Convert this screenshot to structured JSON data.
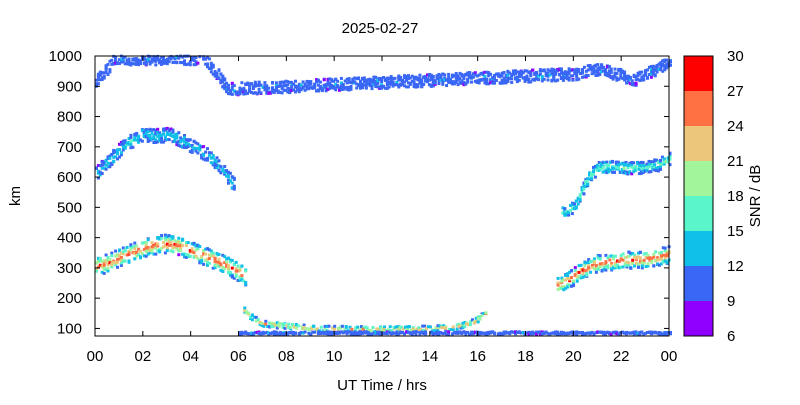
{
  "chart_data": {
    "type": "heatmap",
    "title": "2025-02-27",
    "xlabel": "UT Time / hrs",
    "ylabel": "km",
    "xlim": [
      0,
      24
    ],
    "ylim": [
      75,
      1000
    ],
    "x_tick_labels": [
      "00",
      "02",
      "04",
      "06",
      "08",
      "10",
      "12",
      "14",
      "16",
      "18",
      "20",
      "22",
      "00"
    ],
    "y_ticks": [
      100,
      200,
      300,
      400,
      500,
      600,
      700,
      800,
      900,
      1000
    ],
    "colorbar": {
      "label": "SNR / dB",
      "ticks": [
        6,
        9,
        12,
        15,
        18,
        21,
        24,
        27,
        30
      ],
      "range": [
        6,
        30
      ],
      "colors": [
        "#8f00ff",
        "#3a67f5",
        "#11c0e8",
        "#5af5c8",
        "#a3f59c",
        "#ecc77b",
        "#ff7043",
        "#ff0000"
      ]
    },
    "grid": false,
    "layers": [
      {
        "name": "F2 layer",
        "points": [
          [
            0,
            305
          ],
          [
            0.5,
            315
          ],
          [
            1,
            335
          ],
          [
            1.5,
            350
          ],
          [
            2,
            365
          ],
          [
            2.5,
            375
          ],
          [
            3,
            380
          ],
          [
            3.5,
            372
          ],
          [
            4,
            355
          ],
          [
            4.5,
            340
          ],
          [
            5,
            325
          ],
          [
            5.5,
            305
          ],
          [
            6,
            285
          ],
          [
            6.3,
            270
          ]
        ],
        "snr_core": 27,
        "band_km": 60
      },
      {
        "name": "E layer",
        "points": [
          [
            6.2,
            160
          ],
          [
            6.6,
            130
          ],
          [
            7,
            115
          ],
          [
            8,
            108
          ],
          [
            9,
            100
          ],
          [
            10,
            98
          ],
          [
            12,
            97
          ],
          [
            14,
            98
          ],
          [
            15,
            105
          ],
          [
            15.8,
            120
          ],
          [
            16.3,
            150
          ]
        ],
        "snr_core": 24,
        "band_km": 20
      },
      {
        "name": "Multi-hop echo",
        "points": [
          [
            0,
            610
          ],
          [
            0.5,
            650
          ],
          [
            1,
            690
          ],
          [
            1.5,
            720
          ],
          [
            2,
            740
          ],
          [
            2.5,
            735
          ],
          [
            3,
            740
          ],
          [
            3.5,
            725
          ],
          [
            4,
            700
          ],
          [
            4.5,
            680
          ],
          [
            5,
            650
          ],
          [
            5.5,
            600
          ],
          [
            5.8,
            570
          ]
        ],
        "snr_core": 14,
        "band_km": 45
      },
      {
        "name": "Evening F layer",
        "points": [
          [
            19.3,
            240
          ],
          [
            19.8,
            260
          ],
          [
            20.2,
            285
          ],
          [
            20.7,
            305
          ],
          [
            21,
            315
          ],
          [
            21.5,
            320
          ],
          [
            22,
            325
          ],
          [
            22.5,
            325
          ],
          [
            23,
            328
          ],
          [
            23.5,
            335
          ],
          [
            24,
            345
          ]
        ],
        "snr_core": 27,
        "band_km": 55
      },
      {
        "name": "Evening echo",
        "points": [
          [
            19.5,
            480
          ],
          [
            20,
            500
          ],
          [
            20.3,
            550
          ],
          [
            20.6,
            600
          ],
          [
            21,
            630
          ],
          [
            21.5,
            635
          ],
          [
            22,
            630
          ],
          [
            22.5,
            630
          ],
          [
            23,
            630
          ],
          [
            23.5,
            640
          ],
          [
            24,
            660
          ]
        ],
        "snr_core": 17,
        "band_km": 40
      },
      {
        "name": "Top returns",
        "points": [
          [
            0,
            920
          ],
          [
            0.5,
            960
          ],
          [
            0.8,
            990
          ],
          [
            4.5,
            990
          ],
          [
            5,
            950
          ],
          [
            5.5,
            890
          ],
          [
            20,
            940
          ],
          [
            21,
            955
          ],
          [
            22,
            935
          ],
          [
            22.5,
            920
          ],
          [
            23,
            940
          ],
          [
            23.5,
            960
          ],
          [
            24,
            985
          ]
        ],
        "snr_core": 11,
        "band_km": 40
      },
      {
        "name": "Ground returns",
        "points": [
          [
            6,
            85
          ],
          [
            8,
            85
          ],
          [
            10,
            85
          ],
          [
            12,
            85
          ],
          [
            14,
            85
          ],
          [
            16,
            85
          ],
          [
            18,
            85
          ],
          [
            20,
            85
          ],
          [
            22,
            85
          ],
          [
            24,
            85
          ]
        ],
        "snr_core": 11,
        "band_km": 8
      }
    ]
  }
}
